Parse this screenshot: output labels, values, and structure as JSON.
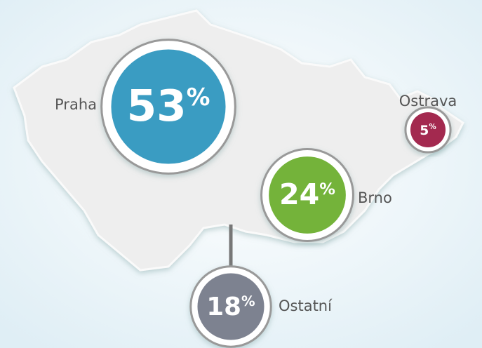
{
  "regions": [
    {
      "name": "Praha",
      "value": 53,
      "unit": "%",
      "color": "#3a9cc2"
    },
    {
      "name": "Brno",
      "value": 24,
      "unit": "%",
      "color": "#74b33a"
    },
    {
      "name": "Ostrava",
      "value": 5,
      "unit": "%",
      "color": "#a3294f"
    },
    {
      "name": "Ostatní",
      "value": 18,
      "unit": "%",
      "color": "#7d8290"
    }
  ]
}
